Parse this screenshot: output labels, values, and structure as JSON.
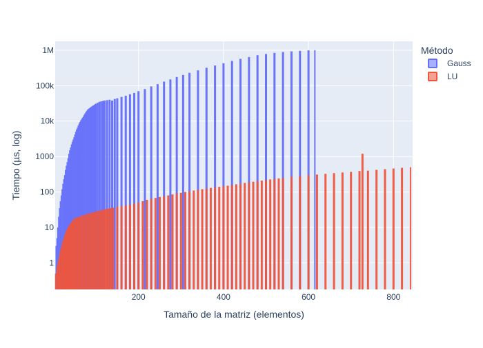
{
  "chart_data": {
    "type": "bar",
    "title": "",
    "xlabel": "Tamaño de la matriz (elementos)",
    "ylabel": "Tiempo (µs, log)",
    "x_range": [
      4,
      845
    ],
    "y_log": true,
    "y_range_log10": [
      -0.75,
      6.25
    ],
    "x_ticks": [
      {
        "value": 200,
        "label": "200"
      },
      {
        "value": 400,
        "label": "400"
      },
      {
        "value": 600,
        "label": "600"
      },
      {
        "value": 800,
        "label": "800"
      }
    ],
    "y_ticks": [
      {
        "value": 1,
        "label": "1"
      },
      {
        "value": 10,
        "label": "10"
      },
      {
        "value": 100,
        "label": "100"
      },
      {
        "value": 1000,
        "label": "1000"
      },
      {
        "value": 10000,
        "label": "10k"
      },
      {
        "value": 100000,
        "label": "100k"
      },
      {
        "value": 1000000,
        "label": "1M"
      }
    ],
    "grid": true,
    "legend_position": "top-right",
    "legend_title": "Método",
    "colors": {
      "plot_bg": "#e5ecf6",
      "grid": "#ffffff"
    },
    "series": [
      {
        "name": "Gauss",
        "color": "#636efa",
        "points": [
          [
            6,
            3
          ],
          [
            8,
            5
          ],
          [
            10,
            10
          ],
          [
            12,
            20
          ],
          [
            14,
            35
          ],
          [
            16,
            55
          ],
          [
            18,
            80
          ],
          [
            20,
            120
          ],
          [
            22,
            170
          ],
          [
            24,
            230
          ],
          [
            26,
            300
          ],
          [
            28,
            420
          ],
          [
            30,
            550
          ],
          [
            32,
            700
          ],
          [
            34,
            900
          ],
          [
            36,
            1200
          ],
          [
            38,
            1500
          ],
          [
            40,
            1800
          ],
          [
            42,
            2200
          ],
          [
            44,
            2600
          ],
          [
            46,
            3000
          ],
          [
            48,
            3500
          ],
          [
            50,
            4200
          ],
          [
            52,
            5000
          ],
          [
            54,
            5800
          ],
          [
            56,
            6500
          ],
          [
            58,
            7500
          ],
          [
            60,
            8500
          ],
          [
            62,
            9500
          ],
          [
            64,
            10500
          ],
          [
            66,
            11500
          ],
          [
            68,
            12500
          ],
          [
            70,
            13500
          ],
          [
            72,
            15000
          ],
          [
            74,
            16500
          ],
          [
            76,
            18000
          ],
          [
            78,
            19500
          ],
          [
            80,
            21000
          ],
          [
            82,
            22000
          ],
          [
            84,
            23000
          ],
          [
            86,
            24000
          ],
          [
            88,
            25000
          ],
          [
            90,
            26000
          ],
          [
            92,
            27000
          ],
          [
            94,
            28000
          ],
          [
            96,
            29000
          ],
          [
            98,
            30000
          ],
          [
            100,
            31000
          ],
          [
            104,
            33000
          ],
          [
            108,
            35000
          ],
          [
            112,
            36000
          ],
          [
            116,
            37000
          ],
          [
            120,
            38000
          ],
          [
            126,
            39000
          ],
          [
            132,
            40000
          ],
          [
            138,
            38000
          ],
          [
            144,
            42000
          ],
          [
            150,
            44000
          ],
          [
            160,
            48000
          ],
          [
            170,
            52000
          ],
          [
            180,
            57000
          ],
          [
            190,
            62000
          ],
          [
            200,
            70000
          ],
          [
            215,
            80000
          ],
          [
            230,
            95000
          ],
          [
            245,
            110000
          ],
          [
            260,
            130000
          ],
          [
            275,
            150000
          ],
          [
            290,
            175000
          ],
          [
            305,
            200000
          ],
          [
            320,
            230000
          ],
          [
            340,
            270000
          ],
          [
            360,
            320000
          ],
          [
            380,
            370000
          ],
          [
            400,
            430000
          ],
          [
            420,
            500000
          ],
          [
            440,
            570000
          ],
          [
            460,
            640000
          ],
          [
            480,
            720000
          ],
          [
            500,
            780000
          ],
          [
            520,
            840000
          ],
          [
            540,
            890000
          ],
          [
            560,
            930000
          ],
          [
            580,
            960000
          ],
          [
            600,
            990000
          ],
          [
            615,
            1000000
          ]
        ]
      },
      {
        "name": "LU",
        "color": "#ef553b",
        "points": [
          [
            5,
            0.5
          ],
          [
            8,
            0.8
          ],
          [
            10,
            1
          ],
          [
            12,
            1.3
          ],
          [
            14,
            1.7
          ],
          [
            16,
            2.2
          ],
          [
            18,
            2.8
          ],
          [
            20,
            3.5
          ],
          [
            22,
            4.2
          ],
          [
            24,
            5
          ],
          [
            26,
            6
          ],
          [
            28,
            7
          ],
          [
            30,
            8
          ],
          [
            32,
            9
          ],
          [
            34,
            10
          ],
          [
            36,
            11
          ],
          [
            38,
            12
          ],
          [
            40,
            13
          ],
          [
            42,
            14
          ],
          [
            44,
            15
          ],
          [
            46,
            16
          ],
          [
            48,
            17
          ],
          [
            50,
            18
          ],
          [
            55,
            19
          ],
          [
            60,
            20
          ],
          [
            65,
            21
          ],
          [
            70,
            22
          ],
          [
            75,
            23
          ],
          [
            80,
            24
          ],
          [
            85,
            25
          ],
          [
            90,
            26
          ],
          [
            95,
            27
          ],
          [
            100,
            28
          ],
          [
            105,
            29
          ],
          [
            110,
            30
          ],
          [
            115,
            31
          ],
          [
            120,
            32
          ],
          [
            125,
            33
          ],
          [
            130,
            34
          ],
          [
            135,
            35
          ],
          [
            140,
            36
          ],
          [
            150,
            38
          ],
          [
            160,
            40
          ],
          [
            170,
            42
          ],
          [
            180,
            44
          ],
          [
            190,
            47
          ],
          [
            200,
            50
          ],
          [
            210,
            55
          ],
          [
            220,
            60
          ],
          [
            230,
            64
          ],
          [
            240,
            68
          ],
          [
            250,
            72
          ],
          [
            260,
            76
          ],
          [
            270,
            80
          ],
          [
            280,
            85
          ],
          [
            290,
            90
          ],
          [
            300,
            95
          ],
          [
            310,
            100
          ],
          [
            320,
            105
          ],
          [
            330,
            110
          ],
          [
            340,
            115
          ],
          [
            350,
            120
          ],
          [
            360,
            125
          ],
          [
            370,
            130
          ],
          [
            380,
            135
          ],
          [
            390,
            140
          ],
          [
            400,
            145
          ],
          [
            410,
            150
          ],
          [
            420,
            158
          ],
          [
            430,
            165
          ],
          [
            440,
            172
          ],
          [
            450,
            180
          ],
          [
            460,
            188
          ],
          [
            470,
            195
          ],
          [
            480,
            202
          ],
          [
            490,
            210
          ],
          [
            500,
            218
          ],
          [
            510,
            226
          ],
          [
            520,
            233
          ],
          [
            530,
            241
          ],
          [
            540,
            250
          ],
          [
            560,
            265
          ],
          [
            580,
            280
          ],
          [
            600,
            295
          ],
          [
            620,
            310
          ],
          [
            640,
            325
          ],
          [
            660,
            340
          ],
          [
            680,
            355
          ],
          [
            700,
            370
          ],
          [
            720,
            390
          ],
          [
            727,
            1200
          ],
          [
            740,
            400
          ],
          [
            760,
            420
          ],
          [
            780,
            440
          ],
          [
            800,
            460
          ],
          [
            820,
            480
          ],
          [
            840,
            500
          ]
        ]
      }
    ]
  }
}
